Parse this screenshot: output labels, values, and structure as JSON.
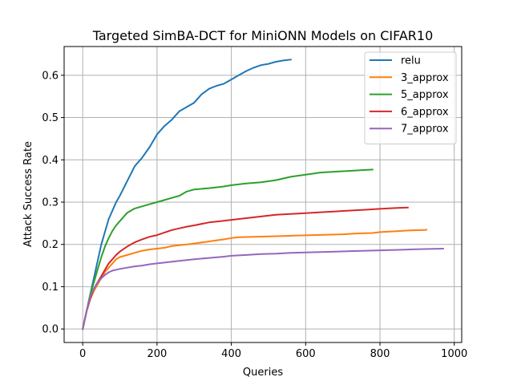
{
  "chart_data": {
    "type": "line",
    "title": "Targeted SimBA-DCT for MiniONN Models on CIFAR10",
    "xlabel": "Queries",
    "ylabel": "Attack Success Rate",
    "xlim": [
      -50,
      1020
    ],
    "ylim": [
      -0.032,
      0.668
    ],
    "x_ticks": [
      0,
      200,
      400,
      600,
      800,
      1000
    ],
    "x_tick_labels": [
      "0",
      "200",
      "400",
      "600",
      "800",
      "1000"
    ],
    "y_ticks": [
      0.0,
      0.1,
      0.2,
      0.3,
      0.4,
      0.5,
      0.6
    ],
    "y_tick_labels": [
      "0.0",
      "0.1",
      "0.2",
      "0.3",
      "0.4",
      "0.5",
      "0.6"
    ],
    "grid": true,
    "legend_position": "top-right",
    "series": [
      {
        "name": "relu",
        "color": "#1f77b4",
        "x": [
          0,
          10,
          20,
          30,
          40,
          50,
          60,
          70,
          80,
          90,
          100,
          120,
          140,
          160,
          180,
          200,
          220,
          240,
          260,
          280,
          300,
          320,
          340,
          360,
          380,
          400,
          420,
          440,
          460,
          480,
          500,
          520,
          540,
          560
        ],
        "y": [
          0.0,
          0.04,
          0.08,
          0.12,
          0.16,
          0.2,
          0.23,
          0.26,
          0.28,
          0.3,
          0.315,
          0.35,
          0.385,
          0.405,
          0.43,
          0.46,
          0.48,
          0.495,
          0.515,
          0.525,
          0.535,
          0.555,
          0.568,
          0.575,
          0.58,
          0.59,
          0.6,
          0.61,
          0.618,
          0.624,
          0.627,
          0.632,
          0.635,
          0.637
        ]
      },
      {
        "name": "3_approx",
        "color": "#ff7f0e",
        "x": [
          0,
          10,
          20,
          30,
          40,
          50,
          60,
          70,
          80,
          90,
          100,
          120,
          140,
          160,
          180,
          200,
          220,
          240,
          260,
          280,
          300,
          340,
          380,
          400,
          420,
          460,
          500,
          540,
          580,
          620,
          660,
          700,
          740,
          780,
          800,
          840,
          880,
          920,
          925
        ],
        "y": [
          0.0,
          0.04,
          0.07,
          0.09,
          0.105,
          0.12,
          0.135,
          0.145,
          0.155,
          0.165,
          0.17,
          0.175,
          0.18,
          0.185,
          0.188,
          0.19,
          0.192,
          0.196,
          0.198,
          0.2,
          0.202,
          0.207,
          0.212,
          0.215,
          0.217,
          0.218,
          0.219,
          0.22,
          0.221,
          0.222,
          0.223,
          0.224,
          0.226,
          0.227,
          0.229,
          0.231,
          0.233,
          0.234,
          0.235
        ]
      },
      {
        "name": "5_approx",
        "color": "#2ca02c",
        "x": [
          0,
          10,
          20,
          30,
          40,
          50,
          60,
          70,
          80,
          90,
          100,
          120,
          140,
          160,
          180,
          200,
          220,
          240,
          260,
          280,
          300,
          340,
          380,
          400,
          440,
          480,
          520,
          560,
          600,
          640,
          680,
          720,
          760,
          780
        ],
        "y": [
          0.0,
          0.04,
          0.08,
          0.11,
          0.14,
          0.17,
          0.195,
          0.215,
          0.232,
          0.245,
          0.255,
          0.275,
          0.285,
          0.29,
          0.295,
          0.3,
          0.305,
          0.31,
          0.315,
          0.325,
          0.33,
          0.333,
          0.337,
          0.34,
          0.344,
          0.347,
          0.352,
          0.36,
          0.365,
          0.37,
          0.372,
          0.374,
          0.376,
          0.377
        ]
      },
      {
        "name": "6_approx",
        "color": "#d62728",
        "x": [
          0,
          10,
          20,
          30,
          40,
          50,
          60,
          70,
          80,
          90,
          100,
          120,
          140,
          160,
          180,
          200,
          220,
          240,
          260,
          280,
          300,
          340,
          380,
          400,
          440,
          480,
          520,
          560,
          600,
          640,
          680,
          720,
          760,
          800,
          840,
          875
        ],
        "y": [
          0.0,
          0.04,
          0.07,
          0.095,
          0.11,
          0.125,
          0.14,
          0.155,
          0.165,
          0.175,
          0.183,
          0.195,
          0.205,
          0.212,
          0.218,
          0.222,
          0.228,
          0.234,
          0.238,
          0.242,
          0.245,
          0.252,
          0.256,
          0.258,
          0.262,
          0.266,
          0.27,
          0.272,
          0.274,
          0.276,
          0.278,
          0.28,
          0.282,
          0.284,
          0.286,
          0.287
        ]
      },
      {
        "name": "7_approx",
        "color": "#9467bd",
        "x": [
          0,
          10,
          20,
          30,
          40,
          50,
          60,
          70,
          80,
          90,
          100,
          120,
          140,
          160,
          180,
          200,
          220,
          240,
          260,
          280,
          300,
          340,
          380,
          400,
          440,
          480,
          520,
          560,
          600,
          640,
          680,
          720,
          760,
          800,
          840,
          880,
          920,
          970
        ],
        "y": [
          0.0,
          0.04,
          0.075,
          0.095,
          0.11,
          0.12,
          0.128,
          0.134,
          0.138,
          0.14,
          0.142,
          0.145,
          0.148,
          0.15,
          0.153,
          0.155,
          0.157,
          0.159,
          0.161,
          0.163,
          0.165,
          0.168,
          0.171,
          0.173,
          0.175,
          0.177,
          0.178,
          0.18,
          0.181,
          0.182,
          0.183,
          0.184,
          0.185,
          0.186,
          0.187,
          0.188,
          0.189,
          0.19
        ]
      }
    ]
  }
}
